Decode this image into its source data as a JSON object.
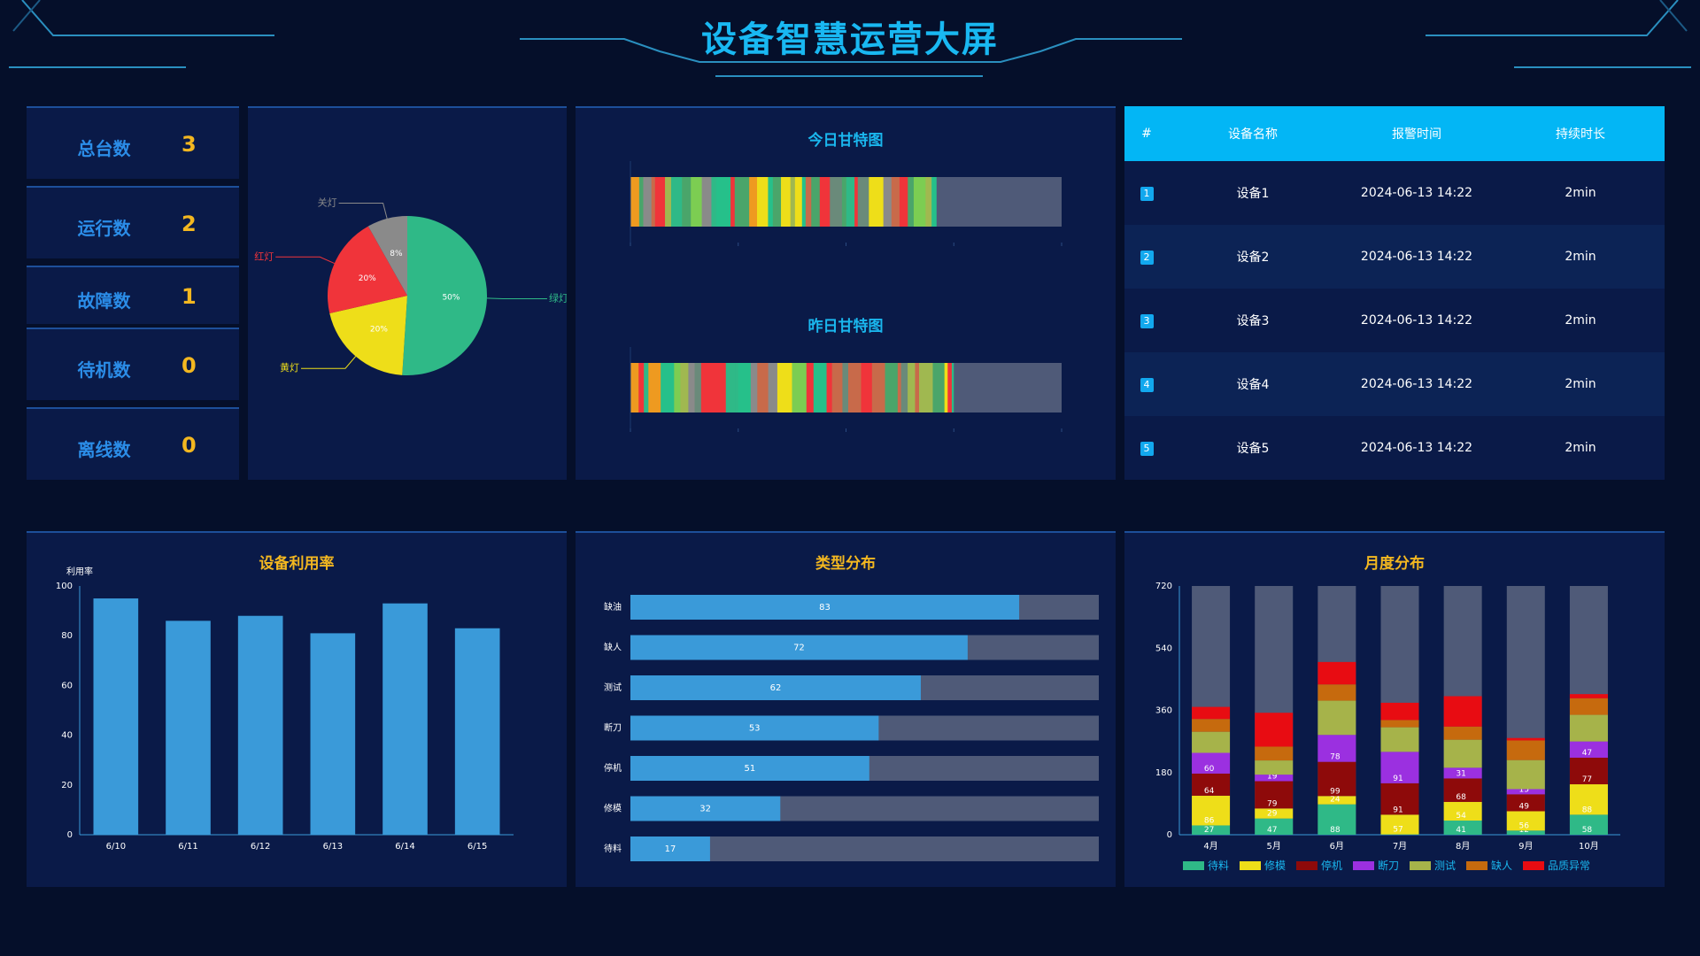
{
  "header": {
    "title": "设备智慧运营大屏"
  },
  "stats": [
    {
      "label": "总台数",
      "value": "3"
    },
    {
      "label": "运行数",
      "value": "2"
    },
    {
      "label": "故障数",
      "value": "1"
    },
    {
      "label": "待机数",
      "value": "0"
    },
    {
      "label": "离线数",
      "value": "0"
    }
  ],
  "pie": {
    "slices": [
      {
        "name": "绿灯",
        "value": 50,
        "label": "50%",
        "color": "#2fb987"
      },
      {
        "name": "黄灯",
        "value": 20,
        "label": "20%",
        "color": "#eede19"
      },
      {
        "name": "红灯",
        "value": 20,
        "label": "20%",
        "color": "#f0343a"
      },
      {
        "name": "关灯",
        "value": 8,
        "label": "8%",
        "color": "#8a8a8a"
      }
    ]
  },
  "gantt": {
    "today_title": "今日甘特图",
    "yesterday_title": "昨日甘特图",
    "rest_color": "#4f5a78"
  },
  "alarm_table": {
    "headers": [
      "#",
      "设备名称",
      "报警时间",
      "持续时长"
    ],
    "rows": [
      {
        "index": "1",
        "name": "设备1",
        "time": "2024-06-13 14:22",
        "duration": "2min"
      },
      {
        "index": "2",
        "name": "设备2",
        "time": "2024-06-13 14:22",
        "duration": "2min"
      },
      {
        "index": "3",
        "name": "设备3",
        "time": "2024-06-13 14:22",
        "duration": "2min"
      },
      {
        "index": "4",
        "name": "设备4",
        "time": "2024-06-13 14:22",
        "duration": "2min"
      },
      {
        "index": "5",
        "name": "设备5",
        "time": "2024-06-13 14:22",
        "duration": "2min"
      }
    ]
  },
  "chart_data": [
    {
      "type": "bar",
      "title": "设备利用率",
      "ylabel": "利用率",
      "categories": [
        "6/10",
        "6/11",
        "6/12",
        "6/13",
        "6/14",
        "6/15"
      ],
      "values": [
        95,
        86,
        88,
        81,
        93,
        83
      ],
      "ylim": [
        0,
        100
      ],
      "yticks": [
        0,
        20,
        40,
        60,
        80,
        100
      ],
      "color": "#3a9ad9"
    },
    {
      "type": "bar",
      "title": "类型分布",
      "orientation": "horizontal",
      "categories": [
        "缺油",
        "缺人",
        "测试",
        "断刀",
        "停机",
        "修模",
        "待料"
      ],
      "values": [
        83,
        72,
        62,
        53,
        51,
        32,
        17
      ],
      "max": 100,
      "color": "#3a9ad9",
      "background_color": "#4f5a78"
    },
    {
      "type": "bar",
      "title": "月度分布",
      "stacked": true,
      "categories": [
        "4月",
        "5月",
        "6月",
        "7月",
        "8月",
        "9月",
        "10月"
      ],
      "ylim": [
        0,
        720
      ],
      "yticks": [
        0,
        180,
        360,
        540,
        720
      ],
      "total_color": "#4f5a78",
      "series": [
        {
          "name": "待料",
          "color": "#2fb987",
          "values": [
            27,
            47,
            88,
            1,
            41,
            12,
            58
          ]
        },
        {
          "name": "修模",
          "color": "#eede19",
          "values": [
            86,
            29,
            24,
            57,
            54,
            56,
            88
          ]
        },
        {
          "name": "停机",
          "color": "#8e0a0a",
          "values": [
            64,
            79,
            99,
            91,
            68,
            49,
            77
          ]
        },
        {
          "name": "断刀",
          "color": "#9b30e0",
          "values": [
            60,
            19,
            78,
            91,
            31,
            15,
            47
          ]
        },
        {
          "name": "测试",
          "color": "#a6b34a",
          "values": [
            61,
            41,
            99,
            71,
            81,
            84,
            77
          ]
        },
        {
          "name": "缺人",
          "color": "#c66a0e",
          "values": [
            37,
            40,
            47,
            21,
            38,
            57,
            48
          ]
        },
        {
          "name": "品质异常",
          "color": "#e80c12",
          "values": [
            35,
            98,
            65,
            50,
            88,
            7,
            12
          ]
        }
      ]
    }
  ]
}
